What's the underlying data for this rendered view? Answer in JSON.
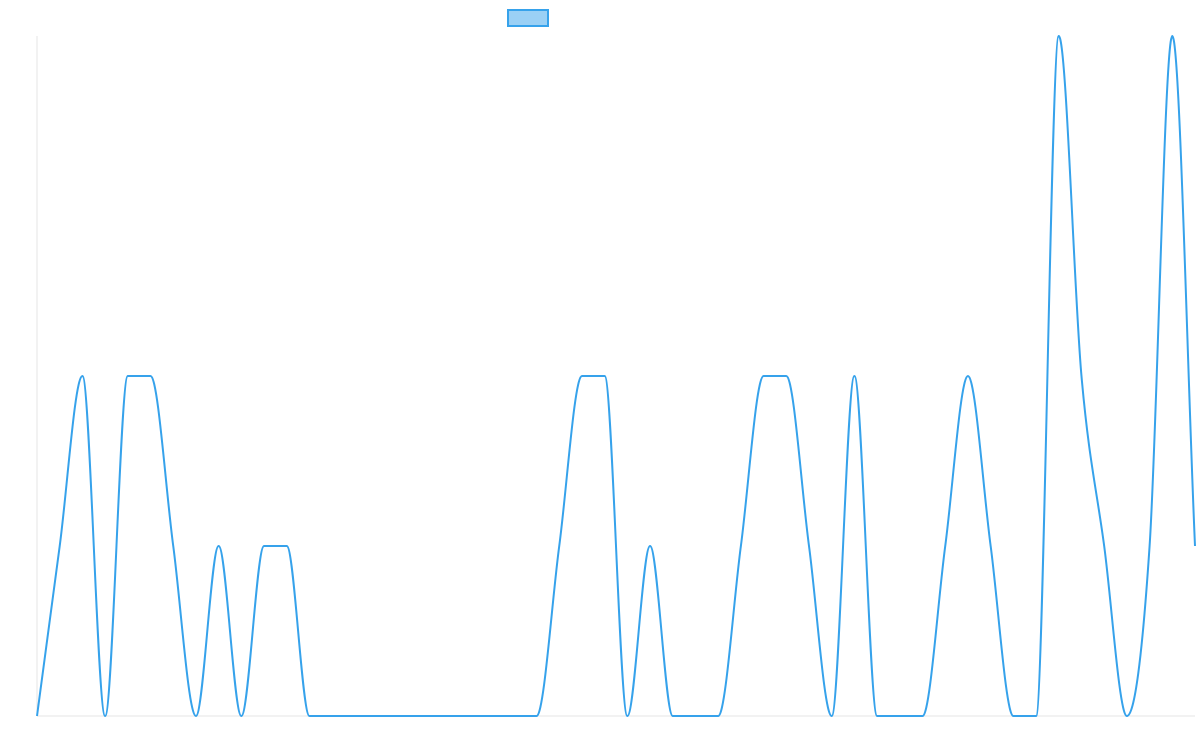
{
  "chart_data": {
    "type": "line",
    "title": "",
    "xlabel": "",
    "ylabel": "",
    "grid": false,
    "legend": "top-center",
    "colors": {
      "line": "#36a2eb",
      "legend_fill": "#9ad0f5",
      "axis": "#e6e6e6"
    },
    "ylim": [
      0,
      2
    ],
    "x": [
      0,
      1,
      2,
      3,
      4,
      5,
      6,
      7,
      8,
      9,
      10,
      11,
      12,
      13,
      14,
      15,
      16,
      17,
      18,
      19,
      20,
      21,
      22,
      23,
      24,
      25,
      26,
      27,
      28,
      29,
      30,
      31,
      32,
      33,
      34,
      35,
      36,
      37,
      38,
      39,
      40,
      41,
      42,
      43,
      44,
      45,
      46,
      47,
      48,
      49,
      50,
      51
    ],
    "series": [
      {
        "values": [
          0,
          0.5,
          1,
          0,
          1,
          1,
          0.5,
          0,
          0.5,
          0,
          0.5,
          0.5,
          0,
          0,
          0,
          0,
          0,
          0,
          0,
          0,
          0,
          0,
          0,
          0.5,
          1,
          1,
          0,
          0.5,
          0,
          0,
          0,
          0.5,
          1,
          1,
          0.5,
          0,
          1,
          0,
          0,
          0,
          0.5,
          1,
          0.5,
          0,
          0,
          2,
          1,
          0.5,
          0,
          0.5,
          2,
          0.5
        ]
      }
    ]
  }
}
